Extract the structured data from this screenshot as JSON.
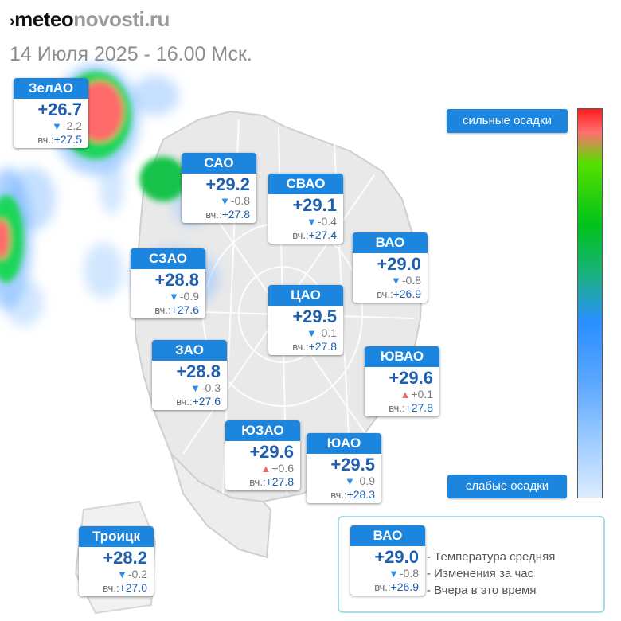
{
  "header": {
    "logo_mark": "›",
    "logo_part1": "meteo",
    "logo_part2": "novosti.ru",
    "date": "14 Июля 2025 - 16.00 Мск."
  },
  "districts": [
    {
      "name": "ЗелАО",
      "temp": "+26.7",
      "trend": "down",
      "change": "-2.2",
      "yesterday_label": "вч.:",
      "yesterday": "+27.5"
    },
    {
      "name": "САО",
      "temp": "+29.2",
      "trend": "down",
      "change": "-0.8",
      "yesterday_label": "вч.:",
      "yesterday": "+27.8"
    },
    {
      "name": "СВАО",
      "temp": "+29.1",
      "trend": "down",
      "change": "-0.4",
      "yesterday_label": "вч.:",
      "yesterday": "+27.4"
    },
    {
      "name": "ВАО",
      "temp": "+29.0",
      "trend": "down",
      "change": "-0.8",
      "yesterday_label": "вч.:",
      "yesterday": "+26.9"
    },
    {
      "name": "СЗАО",
      "temp": "+28.8",
      "trend": "down",
      "change": "-0.9",
      "yesterday_label": "вч.:",
      "yesterday": "+27.6"
    },
    {
      "name": "ЦАО",
      "temp": "+29.5",
      "trend": "down",
      "change": "-0.1",
      "yesterday_label": "вч.:",
      "yesterday": "+27.8"
    },
    {
      "name": "ЗАО",
      "temp": "+28.8",
      "trend": "down",
      "change": "-0.3",
      "yesterday_label": "вч.:",
      "yesterday": "+27.6"
    },
    {
      "name": "ЮВАО",
      "temp": "+29.6",
      "trend": "up",
      "change": "+0.1",
      "yesterday_label": "вч.:",
      "yesterday": "+27.8"
    },
    {
      "name": "ЮЗАО",
      "temp": "+29.6",
      "trend": "up",
      "change": "+0.6",
      "yesterday_label": "вч.:",
      "yesterday": "+27.8"
    },
    {
      "name": "ЮАО",
      "temp": "+29.5",
      "trend": "down",
      "change": "-0.9",
      "yesterday_label": "вч.:",
      "yesterday": "+28.3"
    },
    {
      "name": "Троицк",
      "temp": "+28.2",
      "trend": "down",
      "change": "-0.2",
      "yesterday_label": "вч.:",
      "yesterday": "+27.0"
    }
  ],
  "precip_legend": {
    "top_label": "сильные осадки",
    "bottom_label": "слабые осадки",
    "colors": [
      "#ff1e1e",
      "#ff7070",
      "#55e000",
      "#00c21a",
      "#2a8fff",
      "#9ccaff",
      "#dcecff"
    ]
  },
  "key": {
    "sample": {
      "name": "ВАО",
      "temp": "+29.0",
      "trend": "down",
      "change": "-0.8",
      "yesterday_label": "вч.:",
      "yesterday": "+26.9"
    },
    "lines": [
      "- Температура средняя",
      "- Изменения за час",
      "- Вчера в это время"
    ]
  },
  "colors": {
    "card_header": "#1c86df",
    "temp_text": "#1f5fb0",
    "trend_down": "#2b8de4",
    "trend_up": "#ef6a6a"
  }
}
